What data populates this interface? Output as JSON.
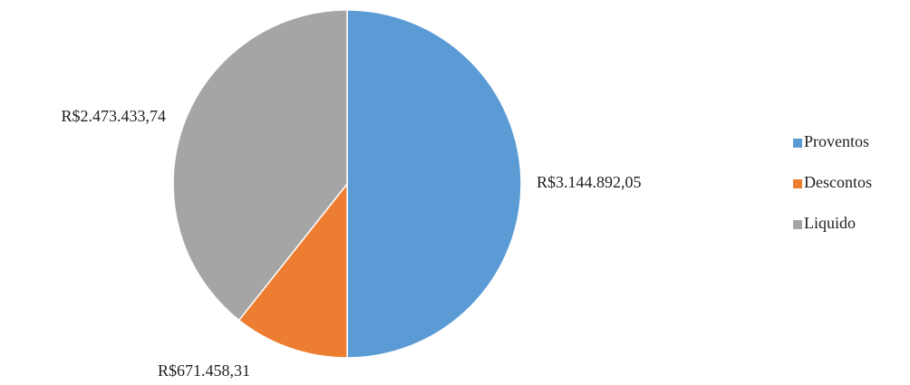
{
  "chart_data": {
    "type": "pie",
    "categories": [
      "Proventos",
      "Descontos",
      "Liquido"
    ],
    "values": [
      3144892.05,
      671458.31,
      2473433.74
    ],
    "value_labels": [
      "R$3.144.892,05",
      "R$671.458,31",
      "R$2.473.433,74"
    ],
    "colors": [
      "#5b9bd5",
      "#ed7d31",
      "#a5a5a5"
    ],
    "legend": "right"
  }
}
